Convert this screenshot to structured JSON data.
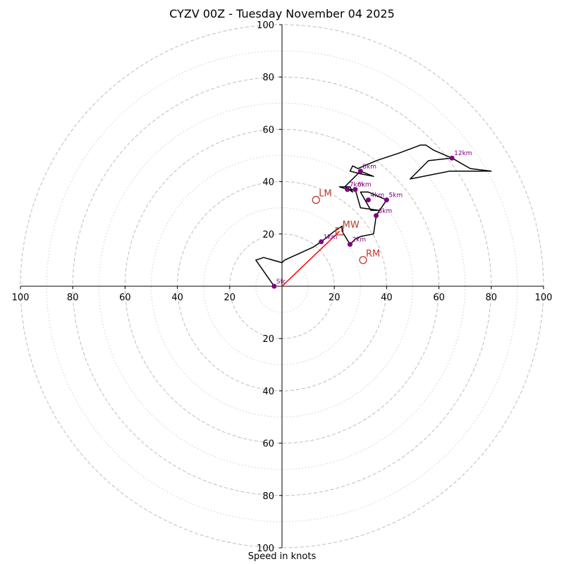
{
  "chart_data": {
    "type": "hodograph",
    "title": "CYZV 00Z - Tuesday November 04 2025",
    "xlabel": "Speed in knots",
    "axis_range": [
      -100,
      100
    ],
    "ring_major": [
      20,
      40,
      60,
      80,
      100
    ],
    "ring_minor": [
      10,
      30,
      50,
      70,
      90
    ],
    "tick_labels": {
      "x_left": [
        "100",
        "80",
        "60",
        "40",
        "20"
      ],
      "x_right": [
        "20",
        "40",
        "60",
        "80",
        "100"
      ],
      "y_top": [
        "100",
        "80",
        "60",
        "40",
        "20"
      ],
      "y_bottom": [
        "20",
        "40",
        "60",
        "80",
        "100"
      ]
    },
    "tick_values": [
      100,
      80,
      60,
      40,
      20
    ],
    "hodograph_trace": [
      [
        -3,
        0
      ],
      [
        -3,
        0
      ],
      [
        -10,
        10
      ],
      [
        -7,
        11
      ],
      [
        0,
        9
      ],
      [
        1,
        10
      ],
      [
        12,
        15
      ],
      [
        15,
        17
      ],
      [
        20,
        21
      ],
      [
        23,
        23
      ],
      [
        23,
        21
      ],
      [
        26,
        16
      ],
      [
        28,
        18
      ],
      [
        30,
        19
      ],
      [
        35,
        20
      ],
      [
        36,
        27
      ],
      [
        36,
        27
      ],
      [
        40,
        33
      ],
      [
        33,
        36
      ],
      [
        30,
        36
      ],
      [
        34,
        29
      ],
      [
        37,
        29
      ],
      [
        30,
        30
      ],
      [
        28,
        37
      ],
      [
        25,
        37
      ],
      [
        22,
        38
      ],
      [
        26,
        38
      ],
      [
        27,
        36
      ],
      [
        24,
        38
      ],
      [
        30,
        44
      ],
      [
        35,
        42
      ],
      [
        30,
        43
      ],
      [
        26,
        44
      ],
      [
        27,
        46
      ],
      [
        29,
        45
      ],
      [
        36,
        48
      ],
      [
        45,
        51
      ],
      [
        53,
        54
      ],
      [
        55,
        54
      ],
      [
        58,
        52
      ],
      [
        65,
        49
      ],
      [
        72,
        45
      ],
      [
        80,
        44
      ],
      [
        64,
        44
      ],
      [
        49,
        41
      ],
      [
        56,
        48
      ],
      [
        65,
        49
      ]
    ],
    "height_markers": [
      {
        "label": "Sfc",
        "u": -3,
        "v": 0
      },
      {
        "label": "1km",
        "u": 15,
        "v": 17
      },
      {
        "label": "2km",
        "u": 26,
        "v": 16
      },
      {
        "label": "3km",
        "u": 36,
        "v": 27
      },
      {
        "label": "4km",
        "u": 33,
        "v": 33
      },
      {
        "label": "5km",
        "u": 40,
        "v": 33
      },
      {
        "label": "6km",
        "u": 28,
        "v": 37
      },
      {
        "label": "7km",
        "u": 25,
        "v": 37
      },
      {
        "label": "8km",
        "u": 30,
        "v": 44
      },
      {
        "label": "12km",
        "u": 65,
        "v": 49
      }
    ],
    "storm_motion": [
      {
        "label": "MW",
        "u": 22,
        "v": 21,
        "shape": "square"
      },
      {
        "label": "LM",
        "u": 13,
        "v": 33,
        "shape": "circle"
      },
      {
        "label": "RM",
        "u": 31,
        "v": 10,
        "shape": "circle"
      }
    ],
    "mean_wind_vector": {
      "from": [
        0,
        0
      ],
      "to": [
        22,
        21
      ]
    }
  },
  "colors": {
    "trace": "#000000",
    "markers": "#800080",
    "storm": "#c0392b",
    "mean_wind_line": "#ff0000",
    "grid_major": "#bdbdbd",
    "grid_minor": "#cfcfcf"
  }
}
